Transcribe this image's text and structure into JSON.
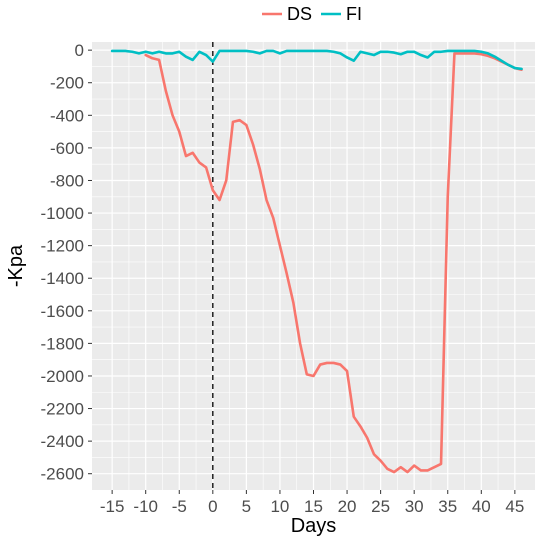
{
  "chart_data": {
    "type": "line",
    "title": "",
    "xlabel": "Days",
    "ylabel": "-Kpa",
    "xlim": [
      -18,
      48
    ],
    "ylim": [
      -2700,
      50
    ],
    "x_ticks": [
      -15,
      -10,
      -5,
      0,
      5,
      10,
      15,
      20,
      25,
      30,
      35,
      40,
      45
    ],
    "x_tick_labels": [
      "-15",
      "-10",
      "-5",
      "0",
      "5",
      "10",
      "15",
      "20",
      "25",
      "30",
      "35",
      "40",
      "45"
    ],
    "y_ticks": [
      0,
      -200,
      -400,
      -600,
      -800,
      -1000,
      -1200,
      -1400,
      -1600,
      -1800,
      -2000,
      -2200,
      -2400,
      -2600
    ],
    "y_tick_labels": [
      "0",
      "-200",
      "-400",
      "-600",
      "-800",
      "-1000",
      "-1200",
      "-1400",
      "-1600",
      "-1800",
      "-2000",
      "-2200",
      "-2400",
      "-2600"
    ],
    "grid": true,
    "legend_position": "top",
    "reference_line": {
      "axis": "x",
      "value": 0,
      "style": "dashed"
    },
    "panel_background": "#ebebeb",
    "grid_color": "#ffffff",
    "series": [
      {
        "name": "DS",
        "color": "#f8766d",
        "points": [
          [
            -10,
            -30
          ],
          [
            -9,
            -50
          ],
          [
            -8,
            -60
          ],
          [
            -7,
            -250
          ],
          [
            -6,
            -400
          ],
          [
            -5,
            -500
          ],
          [
            -4,
            -650
          ],
          [
            -3,
            -630
          ],
          [
            -2,
            -690
          ],
          [
            -1,
            -720
          ],
          [
            0,
            -860
          ],
          [
            1,
            -920
          ],
          [
            2,
            -800
          ],
          [
            3,
            -440
          ],
          [
            4,
            -430
          ],
          [
            5,
            -460
          ],
          [
            6,
            -580
          ],
          [
            7,
            -730
          ],
          [
            8,
            -920
          ],
          [
            9,
            -1030
          ],
          [
            10,
            -1200
          ],
          [
            11,
            -1370
          ],
          [
            12,
            -1550
          ],
          [
            13,
            -1800
          ],
          [
            14,
            -1990
          ],
          [
            15,
            -2000
          ],
          [
            16,
            -1930
          ],
          [
            17,
            -1920
          ],
          [
            18,
            -1920
          ],
          [
            19,
            -1930
          ],
          [
            20,
            -1970
          ],
          [
            21,
            -2250
          ],
          [
            22,
            -2310
          ],
          [
            23,
            -2380
          ],
          [
            24,
            -2480
          ],
          [
            25,
            -2520
          ],
          [
            26,
            -2570
          ],
          [
            27,
            -2590
          ],
          [
            28,
            -2560
          ],
          [
            29,
            -2590
          ],
          [
            30,
            -2550
          ],
          [
            31,
            -2580
          ],
          [
            32,
            -2580
          ],
          [
            33,
            -2560
          ],
          [
            34,
            -2540
          ],
          [
            35,
            -900
          ],
          [
            36,
            -20
          ],
          [
            37,
            -20
          ],
          [
            38,
            -20
          ],
          [
            39,
            -20
          ],
          [
            40,
            -25
          ],
          [
            41,
            -35
          ],
          [
            42,
            -50
          ],
          [
            43,
            -70
          ],
          [
            44,
            -90
          ],
          [
            45,
            -110
          ],
          [
            46,
            -120
          ]
        ]
      },
      {
        "name": "FI",
        "color": "#00bfc4",
        "points": [
          [
            -15,
            -5
          ],
          [
            -14,
            -5
          ],
          [
            -13,
            -5
          ],
          [
            -12,
            -10
          ],
          [
            -11,
            -20
          ],
          [
            -10,
            -10
          ],
          [
            -9,
            -20
          ],
          [
            -8,
            -10
          ],
          [
            -7,
            -20
          ],
          [
            -6,
            -20
          ],
          [
            -5,
            -10
          ],
          [
            -4,
            -40
          ],
          [
            -3,
            -60
          ],
          [
            -2,
            -10
          ],
          [
            -1,
            -30
          ],
          [
            0,
            -70
          ],
          [
            1,
            -5
          ],
          [
            2,
            -5
          ],
          [
            3,
            -5
          ],
          [
            4,
            -5
          ],
          [
            5,
            -5
          ],
          [
            6,
            -10
          ],
          [
            7,
            -20
          ],
          [
            8,
            -5
          ],
          [
            9,
            -5
          ],
          [
            10,
            -20
          ],
          [
            11,
            -5
          ],
          [
            12,
            -5
          ],
          [
            13,
            -5
          ],
          [
            14,
            -5
          ],
          [
            15,
            -5
          ],
          [
            16,
            -5
          ],
          [
            17,
            -5
          ],
          [
            18,
            -10
          ],
          [
            19,
            -20
          ],
          [
            20,
            -45
          ],
          [
            21,
            -65
          ],
          [
            22,
            -10
          ],
          [
            23,
            -20
          ],
          [
            24,
            -30
          ],
          [
            25,
            -10
          ],
          [
            26,
            -10
          ],
          [
            27,
            -15
          ],
          [
            28,
            -25
          ],
          [
            29,
            -10
          ],
          [
            30,
            -10
          ],
          [
            31,
            -30
          ],
          [
            32,
            -45
          ],
          [
            33,
            -10
          ],
          [
            34,
            -10
          ],
          [
            35,
            -5
          ],
          [
            36,
            -5
          ],
          [
            37,
            -5
          ],
          [
            38,
            -5
          ],
          [
            39,
            -5
          ],
          [
            40,
            -10
          ],
          [
            41,
            -20
          ],
          [
            42,
            -40
          ],
          [
            43,
            -65
          ],
          [
            44,
            -90
          ],
          [
            45,
            -110
          ],
          [
            46,
            -115
          ]
        ]
      }
    ]
  }
}
